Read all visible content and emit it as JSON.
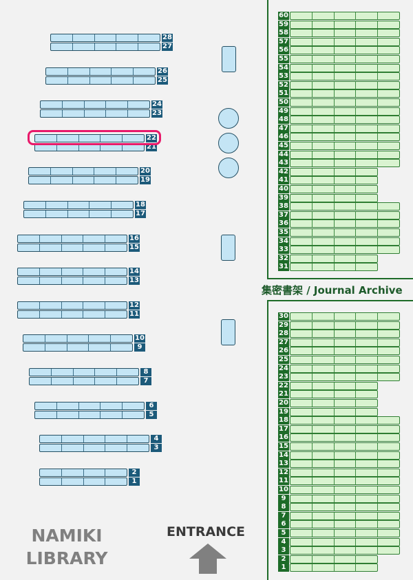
{
  "library_name": [
    "NAMIKI",
    "LIBRARY"
  ],
  "entrance_label": "ENTRANCE",
  "archive_label": "集密書架 / Journal Archive",
  "highlighted_shelf": "22",
  "colors": {
    "general_shelf_fill": "#c4e5f5",
    "general_label": "#1c5a7a",
    "archive_shelf_fill": "#d9f3d0",
    "archive_label": "#1d6b28",
    "highlight": "#e8196a"
  },
  "general_shelves": [
    {
      "labels": [
        "28",
        "27"
      ],
      "cells": 5
    },
    {
      "labels": [
        "26",
        "25"
      ],
      "cells": 5
    },
    {
      "labels": [
        "24",
        "23"
      ],
      "cells": 5
    },
    {
      "labels": [
        "22",
        "21"
      ],
      "cells": 5
    },
    {
      "labels": [
        "20",
        "19"
      ],
      "cells": 5
    },
    {
      "labels": [
        "18",
        "17"
      ],
      "cells": 5
    },
    {
      "labels": [
        "16",
        "15"
      ],
      "cells": 5
    },
    {
      "labels": [
        "14",
        "13"
      ],
      "cells": 5
    },
    {
      "labels": [
        "12",
        "11"
      ],
      "cells": 5
    },
    {
      "labels": [
        "10",
        "9"
      ],
      "cells": 5
    },
    {
      "labels": [
        "8",
        "7"
      ],
      "cells": 5
    },
    {
      "labels": [
        "6",
        "5"
      ],
      "cells": 5
    },
    {
      "labels": [
        "4",
        "3"
      ],
      "cells": 5
    },
    {
      "labels": [
        "2",
        "1"
      ],
      "cells": 4
    }
  ],
  "archive_upper": [
    {
      "labels": [
        "60",
        "59"
      ],
      "cells": 5
    },
    {
      "labels": [
        "58",
        "57"
      ],
      "cells": 5
    },
    {
      "labels": [
        "56",
        "55"
      ],
      "cells": 5
    },
    {
      "labels": [
        "54",
        "53"
      ],
      "cells": 5
    },
    {
      "labels": [
        "52",
        "51"
      ],
      "cells": 5
    },
    {
      "labels": [
        "50",
        "49"
      ],
      "cells": 5
    },
    {
      "labels": [
        "48",
        "47"
      ],
      "cells": 5
    },
    {
      "labels": [
        "46",
        "45"
      ],
      "cells": 5
    },
    {
      "labels": [
        "44",
        "43"
      ],
      "cells": 5
    },
    {
      "labels": [
        "42",
        "41"
      ],
      "cells": 4
    },
    {
      "labels": [
        "40",
        "39"
      ],
      "cells": 4
    },
    {
      "labels": [
        "38",
        "37"
      ],
      "cells": 5
    },
    {
      "labels": [
        "36",
        "35"
      ],
      "cells": 5
    },
    {
      "labels": [
        "34",
        "33"
      ],
      "cells": 5
    },
    {
      "labels": [
        "32",
        "31"
      ],
      "cells": 4
    }
  ],
  "archive_lower": [
    {
      "labels": [
        "30",
        "29"
      ],
      "cells": 5
    },
    {
      "labels": [
        "28",
        "27"
      ],
      "cells": 5
    },
    {
      "labels": [
        "26",
        "25"
      ],
      "cells": 5
    },
    {
      "labels": [
        "24",
        "23"
      ],
      "cells": 5
    },
    {
      "labels": [
        "22",
        "21"
      ],
      "cells": 4
    },
    {
      "labels": [
        "20",
        "19"
      ],
      "cells": 4
    },
    {
      "labels": [
        "18",
        "17"
      ],
      "cells": 5
    },
    {
      "labels": [
        "16",
        "15"
      ],
      "cells": 5
    },
    {
      "labels": [
        "14",
        "13"
      ],
      "cells": 5
    },
    {
      "labels": [
        "12",
        "11"
      ],
      "cells": 5
    },
    {
      "labels": [
        "10",
        "9"
      ],
      "cells": 5
    },
    {
      "labels": [
        "8",
        "7"
      ],
      "cells": 5
    },
    {
      "labels": [
        "6",
        "5"
      ],
      "cells": 5
    },
    {
      "labels": [
        "4",
        "3"
      ],
      "cells": 5
    },
    {
      "labels": [
        "2",
        "1"
      ],
      "cells": 4
    }
  ]
}
